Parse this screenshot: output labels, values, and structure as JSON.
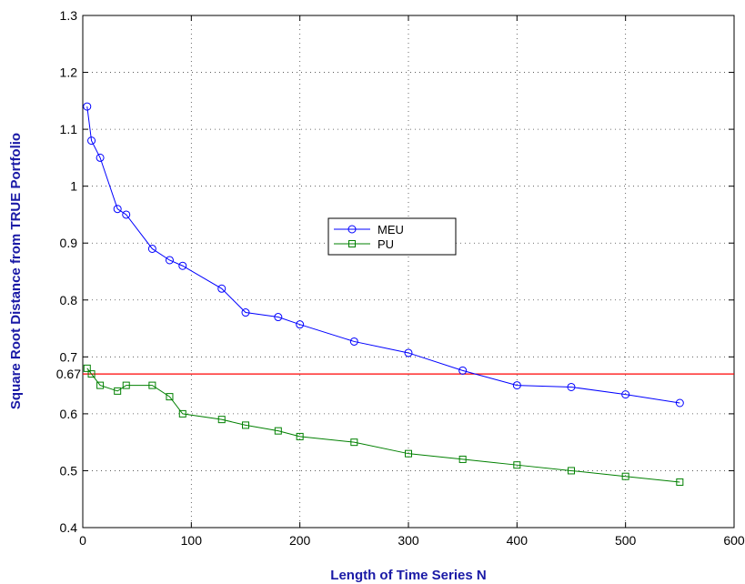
{
  "chart_data": {
    "type": "line",
    "title": "",
    "xlabel": "Length of Time Series N",
    "ylabel": "Square Root Distance from TRUE Portfolio",
    "xlim": [
      0,
      600
    ],
    "ylim": [
      0.4,
      1.3
    ],
    "xticks": [
      "0",
      "100",
      "200",
      "300",
      "400",
      "500",
      "600"
    ],
    "yticks": [
      "0.4",
      "0.5",
      "0.6",
      "0.7",
      "0.8",
      "0.9",
      "1",
      "1.1",
      "1.2",
      "1.3"
    ],
    "grid": true,
    "legend_position": "center",
    "series": [
      {
        "name": "MEU",
        "color": "#0000ff",
        "marker": "circle",
        "x": [
          4,
          8,
          16,
          32,
          40,
          64,
          80,
          92,
          128,
          150,
          180,
          200,
          250,
          300,
          350,
          400,
          450,
          500,
          550
        ],
        "y": [
          1.14,
          1.08,
          1.05,
          0.96,
          0.95,
          0.89,
          0.87,
          0.86,
          0.82,
          0.778,
          0.77,
          0.757,
          0.727,
          0.707,
          0.676,
          0.65,
          0.647,
          0.634,
          0.619
        ]
      },
      {
        "name": "PU",
        "color": "#008000",
        "marker": "square",
        "x": [
          4,
          8,
          16,
          32,
          40,
          64,
          80,
          92,
          128,
          150,
          180,
          200,
          250,
          300,
          350,
          400,
          450,
          500,
          550
        ],
        "y": [
          0.68,
          0.67,
          0.65,
          0.64,
          0.65,
          0.65,
          0.63,
          0.6,
          0.59,
          0.58,
          0.57,
          0.56,
          0.55,
          0.53,
          0.52,
          0.51,
          0.5,
          0.49,
          0.48
        ]
      }
    ],
    "reference_line": {
      "y": 0.67,
      "label": "0.67",
      "color": "#ff0000"
    },
    "axis_title_color": "#1a1aa6"
  }
}
